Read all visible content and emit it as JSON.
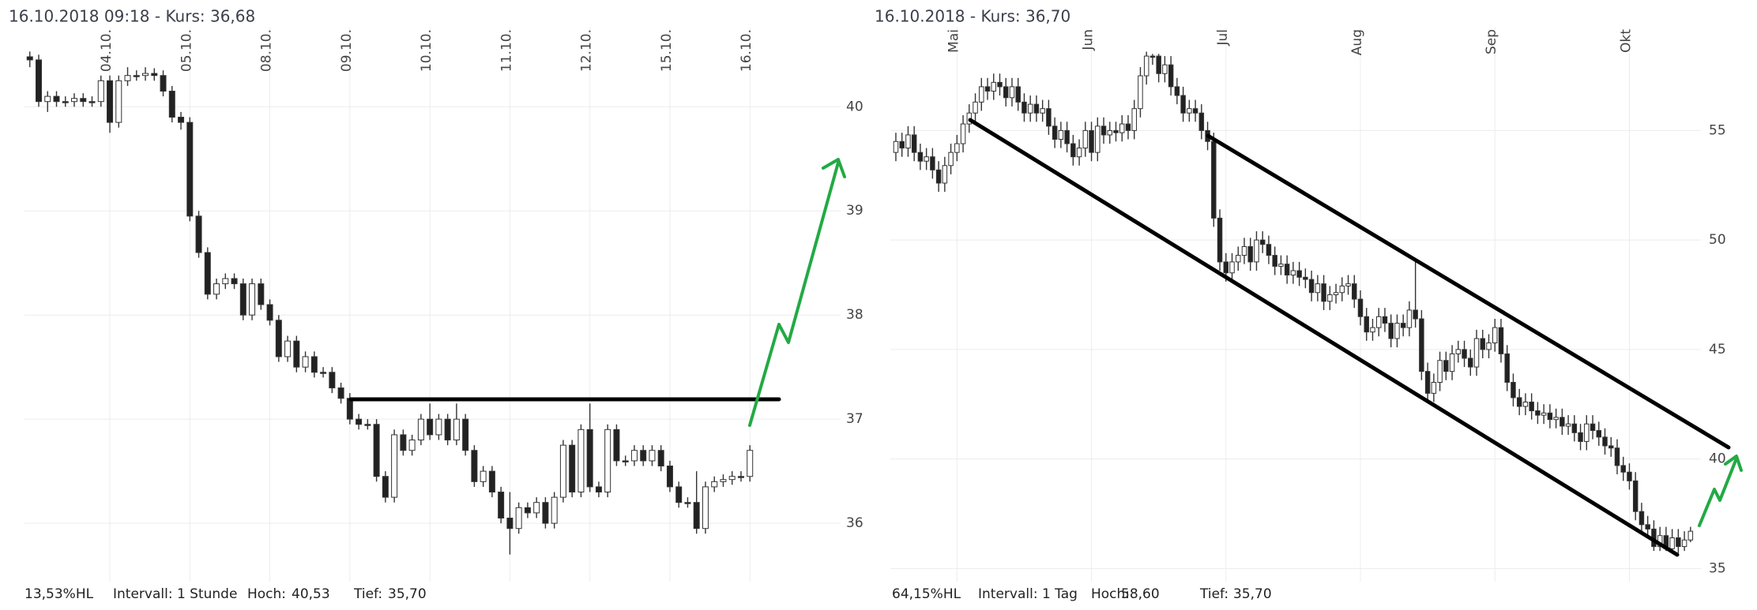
{
  "chart_data": [
    {
      "type": "candlestick",
      "title": "16.10.2018 09:18  -  Kurs: 36,68",
      "footer": {
        "range": "13,53%HL",
        "interval": "Intervall: 1 Stunde",
        "high_label": "Hoch:",
        "high": "40,53",
        "low_label": "Tief:",
        "low": "35,70"
      },
      "xlim": [
        -0.6,
        91.2
      ],
      "ylim": [
        35.44,
        40.76
      ],
      "xticks": [
        {
          "value": 9,
          "label": "04.10."
        },
        {
          "value": 18,
          "label": "05.10."
        },
        {
          "value": 27,
          "label": "08.10."
        },
        {
          "value": 36,
          "label": "09.10."
        },
        {
          "value": 45,
          "label": "10.10."
        },
        {
          "value": 54,
          "label": "11.10."
        },
        {
          "value": 63,
          "label": "12.10."
        },
        {
          "value": 72,
          "label": "15.10."
        },
        {
          "value": 81,
          "label": "16.10."
        }
      ],
      "yticks": [
        36,
        37,
        38,
        39,
        40
      ],
      "grid": true,
      "up_color": "#ffffff",
      "down_color": "#222222",
      "open": [
        40.48,
        40.45,
        40.05,
        40.1,
        40.05,
        40.05,
        40.08,
        40.05,
        40.05,
        40.25,
        39.85,
        40.25,
        40.3,
        40.3,
        40.32,
        40.3,
        40.15,
        39.9,
        39.85,
        38.95,
        38.6,
        38.2,
        38.3,
        38.35,
        38.3,
        38.0,
        38.3,
        38.1,
        37.95,
        37.6,
        37.75,
        37.5,
        37.6,
        37.45,
        37.45,
        37.3,
        37.2,
        37.0,
        36.95,
        36.95,
        36.45,
        36.25,
        36.85,
        36.7,
        36.8,
        37.0,
        36.85,
        37.0,
        36.8,
        37.0,
        36.7,
        36.4,
        36.5,
        36.3,
        36.05,
        35.95,
        36.15,
        36.1,
        36.2,
        36.0,
        36.25,
        36.75,
        36.3,
        36.9,
        36.35,
        36.3,
        36.9,
        36.6,
        36.6,
        36.7,
        36.6,
        36.7,
        36.55,
        36.35,
        36.2,
        36.2,
        35.95,
        36.35,
        36.4,
        36.42,
        36.45,
        36.45
      ],
      "high": [
        40.53,
        40.5,
        40.15,
        40.15,
        40.1,
        40.13,
        40.13,
        40.1,
        40.3,
        40.3,
        40.3,
        40.38,
        40.35,
        40.38,
        40.37,
        40.35,
        40.2,
        39.95,
        39.9,
        39.0,
        38.65,
        38.35,
        38.4,
        38.4,
        38.35,
        38.35,
        38.35,
        38.15,
        38.0,
        37.8,
        37.8,
        37.65,
        37.65,
        37.5,
        37.5,
        37.35,
        37.25,
        37.05,
        37.0,
        37.0,
        36.5,
        36.9,
        36.9,
        36.85,
        37.05,
        37.15,
        37.05,
        37.05,
        37.15,
        37.05,
        36.75,
        36.55,
        36.55,
        36.35,
        36.3,
        36.2,
        36.2,
        36.25,
        36.25,
        36.3,
        36.8,
        36.8,
        36.95,
        37.15,
        36.4,
        36.95,
        36.95,
        36.65,
        36.75,
        36.75,
        36.75,
        36.75,
        36.6,
        36.4,
        36.25,
        36.5,
        36.4,
        36.45,
        36.47,
        36.5,
        36.5,
        36.75
      ],
      "low": [
        40.38,
        40.0,
        39.95,
        40.0,
        40.0,
        40.0,
        40.0,
        40.0,
        40.0,
        39.75,
        39.8,
        40.2,
        40.25,
        40.25,
        40.25,
        40.1,
        39.85,
        39.78,
        38.9,
        38.55,
        38.15,
        38.15,
        38.25,
        38.25,
        37.95,
        37.95,
        38.05,
        37.9,
        37.55,
        37.55,
        37.45,
        37.45,
        37.4,
        37.4,
        37.25,
        37.15,
        36.95,
        36.9,
        36.9,
        36.4,
        36.2,
        36.2,
        36.65,
        36.65,
        36.75,
        36.8,
        36.8,
        36.75,
        36.75,
        36.65,
        36.35,
        36.35,
        36.25,
        36.0,
        35.7,
        35.9,
        36.05,
        36.05,
        35.95,
        35.95,
        36.2,
        36.25,
        36.25,
        36.3,
        36.25,
        36.25,
        36.55,
        36.55,
        36.55,
        36.55,
        36.55,
        36.5,
        36.3,
        36.15,
        36.15,
        35.9,
        35.9,
        36.3,
        36.35,
        36.37,
        36.4,
        36.4
      ],
      "close": [
        40.45,
        40.05,
        40.1,
        40.05,
        40.05,
        40.08,
        40.05,
        40.05,
        40.25,
        39.85,
        40.25,
        40.3,
        40.3,
        40.32,
        40.3,
        40.15,
        39.9,
        39.85,
        38.95,
        38.6,
        38.2,
        38.3,
        38.35,
        38.3,
        38.0,
        38.3,
        38.1,
        37.95,
        37.6,
        37.75,
        37.5,
        37.6,
        37.45,
        37.45,
        37.3,
        37.2,
        37.0,
        36.95,
        36.95,
        36.45,
        36.25,
        36.85,
        36.7,
        36.8,
        37.0,
        36.85,
        37.0,
        36.8,
        37.0,
        36.7,
        36.4,
        36.5,
        36.3,
        36.05,
        35.95,
        36.15,
        36.1,
        36.2,
        36.0,
        36.25,
        36.75,
        36.3,
        36.9,
        36.35,
        36.3,
        36.9,
        36.6,
        36.6,
        36.7,
        36.6,
        36.7,
        36.55,
        36.35,
        36.2,
        36.2,
        35.95,
        36.35,
        36.4,
        36.42,
        36.45,
        36.45,
        36.7
      ]
    },
    {
      "type": "candlestick",
      "title": "16.10.2018  -  Kurs: 36,70",
      "footer": {
        "range": "64,15%HL",
        "interval": "Intervall: 1 Tag",
        "high_label": "Hoch:",
        "high": "58,60",
        "low_label": "Tief:",
        "low": "35,70"
      },
      "xlim": [
        -0.9,
        131.7
      ],
      "ylim": [
        34.4,
        59.7
      ],
      "xticks": [
        {
          "value": 10,
          "label": "Mai"
        },
        {
          "value": 32,
          "label": "Jun"
        },
        {
          "value": 54,
          "label": "Jul"
        },
        {
          "value": 76,
          "label": "Aug"
        },
        {
          "value": 98,
          "label": "Sep"
        },
        {
          "value": 120,
          "label": "Okt"
        }
      ],
      "yticks": [
        35,
        40,
        45,
        50,
        55
      ],
      "grid": true,
      "up_color": "#ffffff",
      "down_color": "#222222",
      "open": [
        54.0,
        54.5,
        54.2,
        54.8,
        54.0,
        53.6,
        53.8,
        53.2,
        52.6,
        53.4,
        54.0,
        54.4,
        55.3,
        55.8,
        56.3,
        57.0,
        56.8,
        57.2,
        57.0,
        56.5,
        57.0,
        56.3,
        55.8,
        56.2,
        55.8,
        56.0,
        55.2,
        54.6,
        55.0,
        54.4,
        53.8,
        54.2,
        55.0,
        54.0,
        55.2,
        54.8,
        55.0,
        54.9,
        55.3,
        55.0,
        56.0,
        57.5,
        58.4,
        58.4,
        57.6,
        58.0,
        57.0,
        56.6,
        55.8,
        56.0,
        55.8,
        55.0,
        54.5,
        51.0,
        49.0,
        48.5,
        49.0,
        49.3,
        49.7,
        49.0,
        50.0,
        49.8,
        49.3,
        48.8,
        48.9,
        48.4,
        48.6,
        48.3,
        48.2,
        47.6,
        48.0,
        47.2,
        47.5,
        47.6,
        47.9,
        48.0,
        47.3,
        46.5,
        45.8,
        46.0,
        46.5,
        46.2,
        45.5,
        46.2,
        46.0,
        46.8,
        46.4,
        44.0,
        43.0,
        43.5,
        44.5,
        44.0,
        44.8,
        45.0,
        44.6,
        44.2,
        45.5,
        45.0,
        45.3,
        46.0,
        44.8,
        43.5,
        42.8,
        42.4,
        42.6,
        42.2,
        42.0,
        42.1,
        41.8,
        41.9,
        41.5,
        41.6,
        41.2,
        40.8,
        41.6,
        41.3,
        41.0,
        40.6,
        40.5,
        39.7,
        39.4,
        39.0,
        37.6,
        37.0,
        36.8,
        36.0,
        36.5,
        35.9,
        36.4,
        36.0,
        36.3
      ],
      "high": [
        54.9,
        54.9,
        55.2,
        55.2,
        54.4,
        54.2,
        54.2,
        53.6,
        53.8,
        54.4,
        54.8,
        55.7,
        56.2,
        56.7,
        57.4,
        57.4,
        57.6,
        57.6,
        57.4,
        57.4,
        57.4,
        56.7,
        56.6,
        56.6,
        56.4,
        56.4,
        55.6,
        55.4,
        55.4,
        54.8,
        54.6,
        55.4,
        55.4,
        55.6,
        55.6,
        55.4,
        55.4,
        55.7,
        55.7,
        56.4,
        57.9,
        58.6,
        58.5,
        58.5,
        58.4,
        58.4,
        57.4,
        57.0,
        56.4,
        56.4,
        56.2,
        55.4,
        54.9,
        51.4,
        49.4,
        49.4,
        49.7,
        50.1,
        50.1,
        50.4,
        50.4,
        50.2,
        49.7,
        49.3,
        49.3,
        49.0,
        49.0,
        48.7,
        48.6,
        48.4,
        48.4,
        47.9,
        48.0,
        48.3,
        48.4,
        48.4,
        47.7,
        46.9,
        46.4,
        46.9,
        46.9,
        46.6,
        46.6,
        46.6,
        47.2,
        49.0,
        46.8,
        44.4,
        43.9,
        44.9,
        44.9,
        45.2,
        45.4,
        45.4,
        45.0,
        45.9,
        45.9,
        45.7,
        46.4,
        46.4,
        45.2,
        43.9,
        43.2,
        43.0,
        43.0,
        42.6,
        42.5,
        42.5,
        42.3,
        42.3,
        42.0,
        42.0,
        41.6,
        42.0,
        42.0,
        41.7,
        41.4,
        41.0,
        40.9,
        40.1,
        39.8,
        39.4,
        38.0,
        37.4,
        37.2,
        36.9,
        36.9,
        36.8,
        36.8,
        36.7,
        36.9
      ],
      "low": [
        53.6,
        53.8,
        53.8,
        53.6,
        53.2,
        53.2,
        52.8,
        52.2,
        52.2,
        53.0,
        53.6,
        54.0,
        54.9,
        55.4,
        55.9,
        56.4,
        56.4,
        56.6,
        56.1,
        56.1,
        55.9,
        55.4,
        55.4,
        55.4,
        55.4,
        54.8,
        54.2,
        54.2,
        54.0,
        53.4,
        53.4,
        53.8,
        53.6,
        53.6,
        54.4,
        54.4,
        54.5,
        54.5,
        54.6,
        54.6,
        55.6,
        57.1,
        58.0,
        57.2,
        57.2,
        56.6,
        56.2,
        55.4,
        55.4,
        55.4,
        54.6,
        54.1,
        50.6,
        48.6,
        48.1,
        48.1,
        48.6,
        48.9,
        48.6,
        48.6,
        49.4,
        48.9,
        48.4,
        48.4,
        48.0,
        48.0,
        47.9,
        47.8,
        47.2,
        47.2,
        46.8,
        46.8,
        47.1,
        47.2,
        47.5,
        46.9,
        46.1,
        45.4,
        45.4,
        45.6,
        45.8,
        45.1,
        45.1,
        45.6,
        45.6,
        46.0,
        43.6,
        42.6,
        42.6,
        43.1,
        43.6,
        43.6,
        44.4,
        44.2,
        43.8,
        43.8,
        44.6,
        44.6,
        44.9,
        44.4,
        43.1,
        42.4,
        42.0,
        42.0,
        41.8,
        41.6,
        41.6,
        41.4,
        41.4,
        41.1,
        41.1,
        40.8,
        40.4,
        40.4,
        40.9,
        40.6,
        40.2,
        40.1,
        39.3,
        39.0,
        38.6,
        37.2,
        36.6,
        36.4,
        35.8,
        35.8,
        35.8,
        35.8,
        35.7,
        35.8,
        36.2
      ],
      "close": [
        54.5,
        54.2,
        54.8,
        54.0,
        53.6,
        53.8,
        53.2,
        52.6,
        53.4,
        54.0,
        54.4,
        55.3,
        55.8,
        56.3,
        57.0,
        56.8,
        57.2,
        57.0,
        56.5,
        57.0,
        56.3,
        55.8,
        56.2,
        55.8,
        56.0,
        55.2,
        54.6,
        55.0,
        54.4,
        53.8,
        54.2,
        55.0,
        54.0,
        55.2,
        54.8,
        55.0,
        54.9,
        55.3,
        55.0,
        56.0,
        57.5,
        58.4,
        58.4,
        57.6,
        58.0,
        57.0,
        56.6,
        55.8,
        56.0,
        55.8,
        55.0,
        54.5,
        51.0,
        49.0,
        48.5,
        49.0,
        49.3,
        49.7,
        49.0,
        50.0,
        49.8,
        49.3,
        48.8,
        48.9,
        48.4,
        48.6,
        48.3,
        48.2,
        47.6,
        48.0,
        47.2,
        47.5,
        47.6,
        47.9,
        48.0,
        47.3,
        46.5,
        45.8,
        46.0,
        46.5,
        46.2,
        45.5,
        46.2,
        46.0,
        46.8,
        46.4,
        44.0,
        43.0,
        43.5,
        44.5,
        44.0,
        44.8,
        45.0,
        44.6,
        44.2,
        45.5,
        45.0,
        45.3,
        46.0,
        44.8,
        43.5,
        42.8,
        42.4,
        42.6,
        42.2,
        42.0,
        42.1,
        41.8,
        41.9,
        41.5,
        41.6,
        41.2,
        40.8,
        41.6,
        41.3,
        41.0,
        40.6,
        40.5,
        39.7,
        39.4,
        39.0,
        37.6,
        37.0,
        36.8,
        36.0,
        36.5,
        35.9,
        36.4,
        36.0,
        36.3,
        36.7
      ]
    }
  ]
}
